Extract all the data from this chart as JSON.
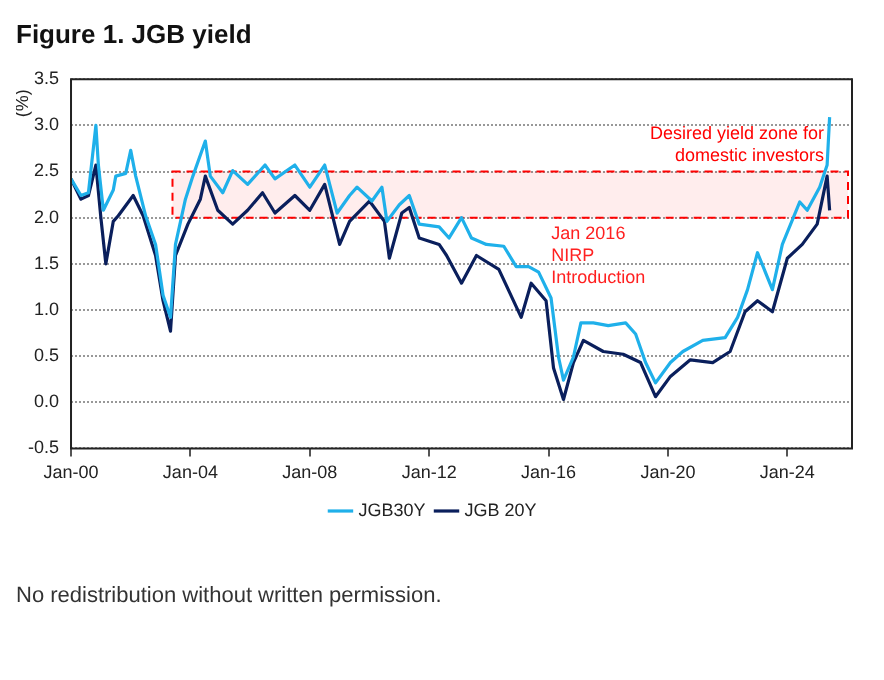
{
  "chart_data": {
    "type": "line",
    "title": "Figure 1. JGB yield",
    "ylabel": "(%)",
    "xlim": [
      "2000-01",
      "2026-03"
    ],
    "xticks": [
      {
        "value": "2000-01",
        "label": "Jan-00"
      },
      {
        "value": "2004-01",
        "label": "Jan-04"
      },
      {
        "value": "2008-01",
        "label": "Jan-08"
      },
      {
        "value": "2012-01",
        "label": "Jan-12"
      },
      {
        "value": "2016-01",
        "label": "Jan-16"
      },
      {
        "value": "2020-01",
        "label": "Jan-20"
      },
      {
        "value": "2024-01",
        "label": "Jan-24"
      }
    ],
    "ylim": [
      -0.5,
      3.5
    ],
    "yticks": [
      {
        "value": -0.5,
        "label": "-0.5"
      },
      {
        "value": 0,
        "label": "0.0"
      },
      {
        "value": 0.5,
        "label": "0.5"
      },
      {
        "value": 1,
        "label": "1.0"
      },
      {
        "value": 1.5,
        "label": "1.5"
      },
      {
        "value": 2,
        "label": "2.0"
      },
      {
        "value": 2.5,
        "label": "2.5"
      },
      {
        "value": 3,
        "label": "3.0"
      },
      {
        "value": 3.5,
        "label": "3.5"
      }
    ],
    "grid": "y",
    "legend": "bottom",
    "marker": "none",
    "line_style": "solid",
    "series": [
      {
        "name": "JGB30Y",
        "color": "#1fb0ea",
        "x": [
          "2000-01",
          "2000-05",
          "2000-08",
          "2000-11",
          "2000-12",
          "2001-02",
          "2001-06",
          "2001-07",
          "2001-11",
          "2002-01",
          "2002-03",
          "2002-07",
          "2002-11",
          "2003-02",
          "2003-05",
          "2003-07",
          "2003-11",
          "2004-02",
          "2004-07",
          "2004-09",
          "2005-02",
          "2005-06",
          "2005-12",
          "2006-07",
          "2006-11",
          "2007-07",
          "2008-01",
          "2008-07",
          "2008-12",
          "2009-05",
          "2009-08",
          "2010-02",
          "2010-06",
          "2010-08",
          "2011-01",
          "2011-05",
          "2011-09",
          "2012-05",
          "2012-09",
          "2013-02",
          "2013-06",
          "2013-12",
          "2014-07",
          "2014-12",
          "2015-05",
          "2015-09",
          "2016-02",
          "2016-05",
          "2016-07",
          "2016-11",
          "2017-02",
          "2017-07",
          "2018-01",
          "2018-08",
          "2018-12",
          "2019-04",
          "2019-08",
          "2020-02",
          "2020-07",
          "2021-03",
          "2021-12",
          "2022-05",
          "2022-09",
          "2023-01",
          "2023-07",
          "2023-11",
          "2024-06",
          "2024-09",
          "2025-02",
          "2025-05",
          "2025-06"
        ],
        "values": [
          2.42,
          2.24,
          2.27,
          3.0,
          2.57,
          2.08,
          2.3,
          2.45,
          2.48,
          2.73,
          2.45,
          2.02,
          1.71,
          1.16,
          0.92,
          1.71,
          2.2,
          2.45,
          2.83,
          2.45,
          2.27,
          2.51,
          2.36,
          2.57,
          2.42,
          2.57,
          2.33,
          2.57,
          2.05,
          2.24,
          2.33,
          2.18,
          2.33,
          1.96,
          2.14,
          2.24,
          1.93,
          1.9,
          1.78,
          2.0,
          1.78,
          1.71,
          1.69,
          1.47,
          1.47,
          1.41,
          1.13,
          0.49,
          0.24,
          0.49,
          0.86,
          0.86,
          0.83,
          0.86,
          0.74,
          0.43,
          0.21,
          0.43,
          0.55,
          0.67,
          0.7,
          0.92,
          1.22,
          1.62,
          1.22,
          1.71,
          2.17,
          2.08,
          2.33,
          2.57,
          3.09
        ]
      },
      {
        "name": "JGB 20Y",
        "color": "#0a1f5c",
        "x": [
          "2000-01",
          "2000-05",
          "2000-08",
          "2000-11",
          "2001-01",
          "2001-03",
          "2001-06",
          "2001-08",
          "2002-02",
          "2002-06",
          "2002-11",
          "2003-02",
          "2003-05",
          "2003-07",
          "2003-12",
          "2004-05",
          "2004-07",
          "2004-12",
          "2005-06",
          "2005-12",
          "2006-06",
          "2006-11",
          "2007-07",
          "2008-01",
          "2008-07",
          "2009-01",
          "2009-05",
          "2010-01",
          "2010-07",
          "2010-09",
          "2011-02",
          "2011-05",
          "2011-09",
          "2012-05",
          "2012-08",
          "2013-02",
          "2013-08",
          "2014-05",
          "2015-02",
          "2015-06",
          "2015-12",
          "2016-03",
          "2016-07",
          "2016-11",
          "2017-03",
          "2017-11",
          "2018-07",
          "2019-02",
          "2019-08",
          "2020-02",
          "2020-10",
          "2021-07",
          "2022-02",
          "2022-08",
          "2023-01",
          "2023-07",
          "2024-01",
          "2024-07",
          "2025-01",
          "2025-05",
          "2025-06"
        ],
        "values": [
          2.42,
          2.2,
          2.24,
          2.57,
          2.0,
          1.5,
          1.96,
          2.02,
          2.24,
          2.02,
          1.59,
          1.1,
          0.77,
          1.59,
          1.93,
          2.2,
          2.45,
          2.08,
          1.93,
          2.08,
          2.27,
          2.05,
          2.24,
          2.08,
          2.36,
          1.71,
          1.96,
          2.18,
          1.96,
          1.56,
          2.05,
          2.11,
          1.78,
          1.71,
          1.59,
          1.29,
          1.59,
          1.44,
          0.92,
          1.29,
          1.1,
          0.37,
          0.03,
          0.43,
          0.67,
          0.55,
          0.52,
          0.43,
          0.06,
          0.28,
          0.46,
          0.43,
          0.55,
          0.98,
          1.1,
          0.98,
          1.56,
          1.71,
          1.93,
          2.45,
          2.08
        ]
      }
    ],
    "bands": [
      {
        "axis": "y",
        "from": 2.0,
        "to": 2.5,
        "label": "Desired yield zone for\ndomestic investors",
        "color": "#ff0000"
      }
    ],
    "annotations": [
      "Jan 2016\nNIRP\nIntroduction",
      "No redistribution without written permission."
    ]
  }
}
